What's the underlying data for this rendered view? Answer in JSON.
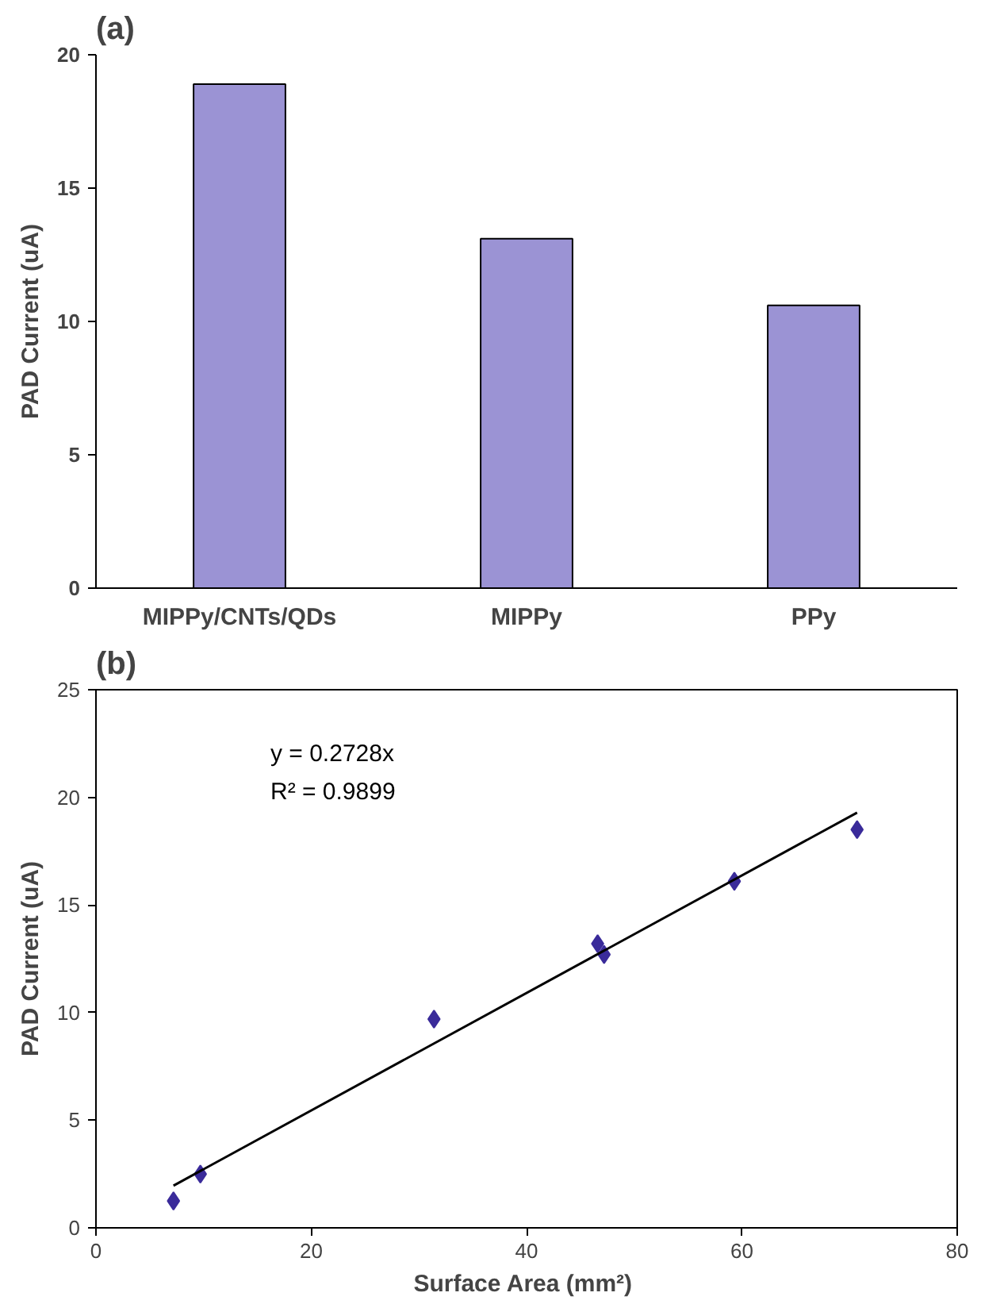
{
  "chart_data": [
    {
      "type": "bar",
      "title": "(a)",
      "ylabel": "PAD Current (uA)",
      "categories": [
        "MIPPy/CNTs/QDs",
        "MIPPy",
        "PPy"
      ],
      "values": [
        18.9,
        13.1,
        10.6
      ],
      "color": "#9b93d4",
      "ylim": [
        0,
        20
      ],
      "yticks": [
        0,
        5,
        10,
        15,
        20
      ],
      "grid": false
    },
    {
      "type": "scatter",
      "title": "(b)",
      "xlabel": "Surface Area  (mm²)",
      "ylabel": "PAD Current (uA)",
      "series": [
        {
          "type": "scatter",
          "color": "#3a2b9a",
          "marker": "diamond",
          "x": [
            7.2,
            9.7,
            31.4,
            46.6,
            47.2,
            59.3,
            70.7
          ],
          "values": [
            1.25,
            2.5,
            9.7,
            13.2,
            12.7,
            16.1,
            18.5
          ]
        },
        {
          "type": "line",
          "color": "#000000",
          "line_style": "solid",
          "x": [
            7.2,
            70.7
          ],
          "values": [
            1.96,
            19.29
          ]
        }
      ],
      "annotations": [
        "y = 0.2728x",
        "R² = 0.9899"
      ],
      "xlim": [
        0,
        80
      ],
      "xticks": [
        0,
        20,
        40,
        60,
        80
      ],
      "ylim": [
        0,
        25
      ],
      "yticks": [
        0,
        5,
        10,
        15,
        20,
        25
      ],
      "grid": false
    }
  ]
}
